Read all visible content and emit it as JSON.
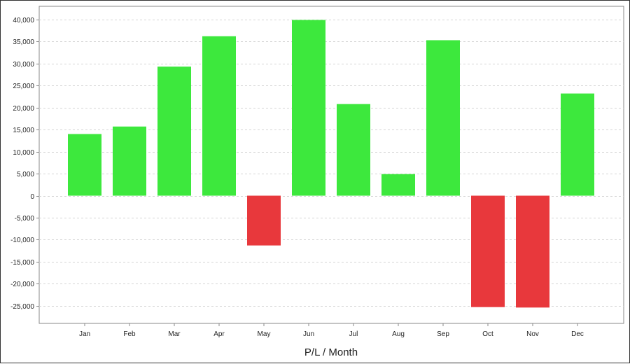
{
  "chart_data": {
    "type": "bar",
    "categories": [
      "Jan",
      "Feb",
      "Mar",
      "Apr",
      "May",
      "Jun",
      "Jul",
      "Aug",
      "Sep",
      "Oct",
      "Nov",
      "Dec"
    ],
    "series": [
      {
        "values": [
          14000,
          15700,
          29300,
          36200,
          -11300,
          39900,
          20800,
          4900,
          35300,
          -25300,
          -25400,
          23200
        ]
      }
    ],
    "xlabel": "P/L / Month",
    "ylabel": "",
    "ylim": [
      -29000,
      43000
    ],
    "yticks": [
      40000,
      35000,
      30000,
      25000,
      20000,
      15000,
      10000,
      5000,
      0,
      -5000,
      -10000,
      -15000,
      -20000,
      -25000
    ],
    "ytick_labels": [
      "40,000",
      "35,000",
      "30,000",
      "25,000",
      "20,000",
      "15,000",
      "10,000",
      "5,000",
      "0",
      "-5,000",
      "-10,000",
      "-15,000",
      "-20,000",
      "-25,000"
    ],
    "grid": true,
    "colors": {
      "positive": "#3de83d",
      "negative": "#e8383c",
      "grid": "#d4d4d4",
      "axis": "#888888"
    }
  }
}
